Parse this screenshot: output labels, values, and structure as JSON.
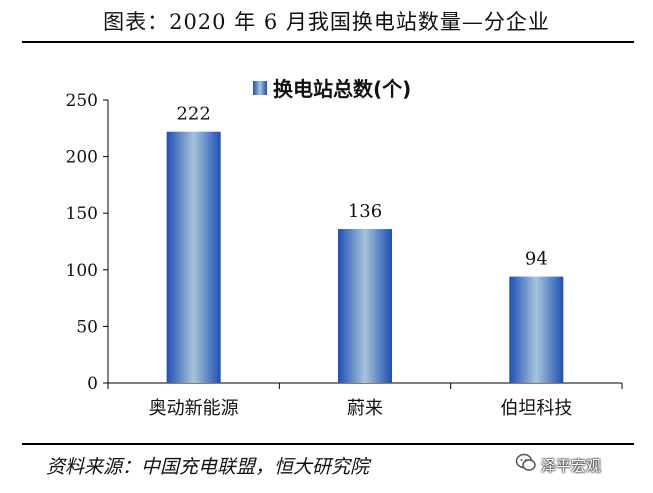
{
  "header": {
    "title": "图表：2020 年 6 月我国换电站数量—分企业"
  },
  "footer": {
    "source": "资料来源：中国充电联盟，恒大研究院",
    "watermark": "泽平宏观",
    "watermark_icon": "wechat-icon"
  },
  "chart_data": {
    "type": "bar",
    "categories": [
      "奥动新能源",
      "蔚来",
      "伯坦科技"
    ],
    "series": [
      {
        "name": "换电站总数(个)",
        "values": [
          222,
          136,
          94
        ]
      }
    ],
    "ylim": [
      0,
      250
    ],
    "yticks": [
      "0",
      "50",
      "100",
      "150",
      "200",
      "250"
    ],
    "grid": false,
    "legend": "top-center",
    "colors": {
      "bar_edge": "#1f4fb5",
      "bar_center": "#9fc0d9"
    }
  }
}
